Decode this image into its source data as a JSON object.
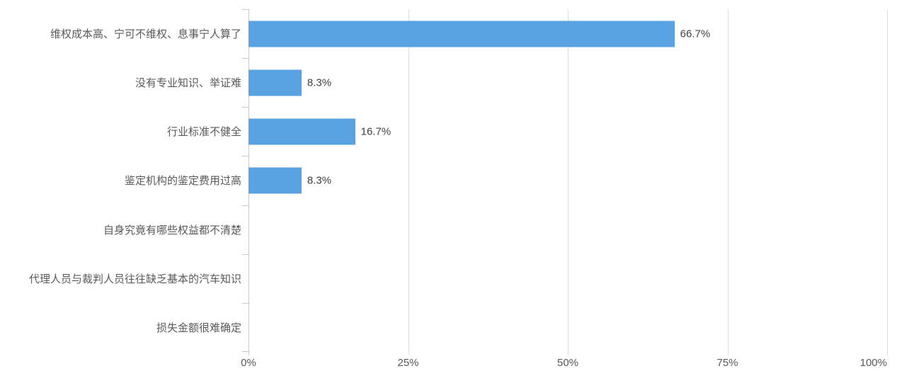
{
  "chart_data": {
    "type": "bar",
    "orientation": "horizontal",
    "title": "",
    "categories": [
      "维权成本高、宁可不维权、息事宁人算了",
      "没有专业知识、举证难",
      "行业标准不健全",
      "鉴定机构的鉴定费用过高",
      "自身究竟有哪些权益都不清楚",
      "代理人员与裁判人员往往缺乏基本的汽车知识",
      "损失金额很难确定"
    ],
    "values": [
      66.7,
      8.3,
      16.7,
      8.3,
      0,
      0,
      0
    ],
    "value_labels": [
      "66.7%",
      "8.3%",
      "16.7%",
      "8.3%",
      "",
      "",
      ""
    ],
    "x_ticks": [
      {
        "value": 0,
        "label": "0%"
      },
      {
        "value": 25,
        "label": "25%"
      },
      {
        "value": 50,
        "label": "50%"
      },
      {
        "value": 75,
        "label": "75%"
      },
      {
        "value": 100,
        "label": "100%"
      }
    ],
    "xlim": [
      0,
      100
    ],
    "xlabel": "",
    "ylabel": "",
    "grid": true,
    "legend": false,
    "colors": {
      "bar": "#58a2e2",
      "axis": "#c9c9c9",
      "gridline": "#dadfe3",
      "category_label": "#595959",
      "value_label": "#404040",
      "tick_label": "#595959",
      "background": "#ffffff"
    }
  }
}
